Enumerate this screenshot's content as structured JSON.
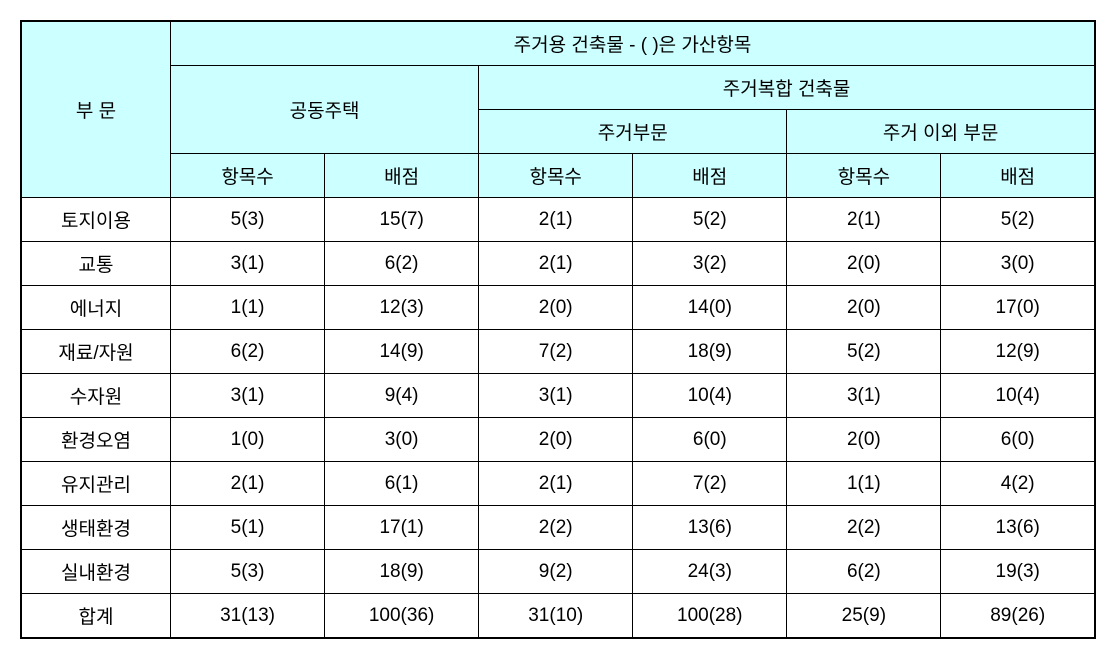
{
  "header": {
    "category": "부 문",
    "main_title": "주거용 건축물 - ( )은 가산항목",
    "group1": "공동주택",
    "group2": "주거복합 건축물",
    "sub1": "주거부문",
    "sub2": "주거 이외 부문",
    "col_count": "항목수",
    "col_score": "배점"
  },
  "rows": [
    {
      "label": "토지이용",
      "c1": "5(3)",
      "c2": "15(7)",
      "c3": "2(1)",
      "c4": "5(2)",
      "c5": "2(1)",
      "c6": "5(2)"
    },
    {
      "label": "교통",
      "c1": "3(1)",
      "c2": "6(2)",
      "c3": "2(1)",
      "c4": "3(2)",
      "c5": "2(0)",
      "c6": "3(0)"
    },
    {
      "label": "에너지",
      "c1": "1(1)",
      "c2": "12(3)",
      "c3": "2(0)",
      "c4": "14(0)",
      "c5": "2(0)",
      "c6": "17(0)"
    },
    {
      "label": "재료/자원",
      "c1": "6(2)",
      "c2": "14(9)",
      "c3": "7(2)",
      "c4": "18(9)",
      "c5": "5(2)",
      "c6": "12(9)"
    },
    {
      "label": "수자원",
      "c1": "3(1)",
      "c2": "9(4)",
      "c3": "3(1)",
      "c4": "10(4)",
      "c5": "3(1)",
      "c6": "10(4)"
    },
    {
      "label": "환경오염",
      "c1": "1(0)",
      "c2": "3(0)",
      "c3": "2(0)",
      "c4": "6(0)",
      "c5": "2(0)",
      "c6": "6(0)"
    },
    {
      "label": "유지관리",
      "c1": "2(1)",
      "c2": "6(1)",
      "c3": "2(1)",
      "c4": "7(2)",
      "c5": "1(1)",
      "c6": "4(2)"
    },
    {
      "label": "생태환경",
      "c1": "5(1)",
      "c2": "17(1)",
      "c3": "2(2)",
      "c4": "13(6)",
      "c5": "2(2)",
      "c6": "13(6)"
    },
    {
      "label": "실내환경",
      "c1": "5(3)",
      "c2": "18(9)",
      "c3": "9(2)",
      "c4": "24(3)",
      "c5": "6(2)",
      "c6": "19(3)"
    },
    {
      "label": "합계",
      "c1": "31(13)",
      "c2": "100(36)",
      "c3": "31(10)",
      "c4": "100(28)",
      "c5": "25(9)",
      "c6": "89(26)"
    }
  ],
  "colors": {
    "header_bg": "#ccffff",
    "border": "#000000",
    "background": "#ffffff"
  }
}
